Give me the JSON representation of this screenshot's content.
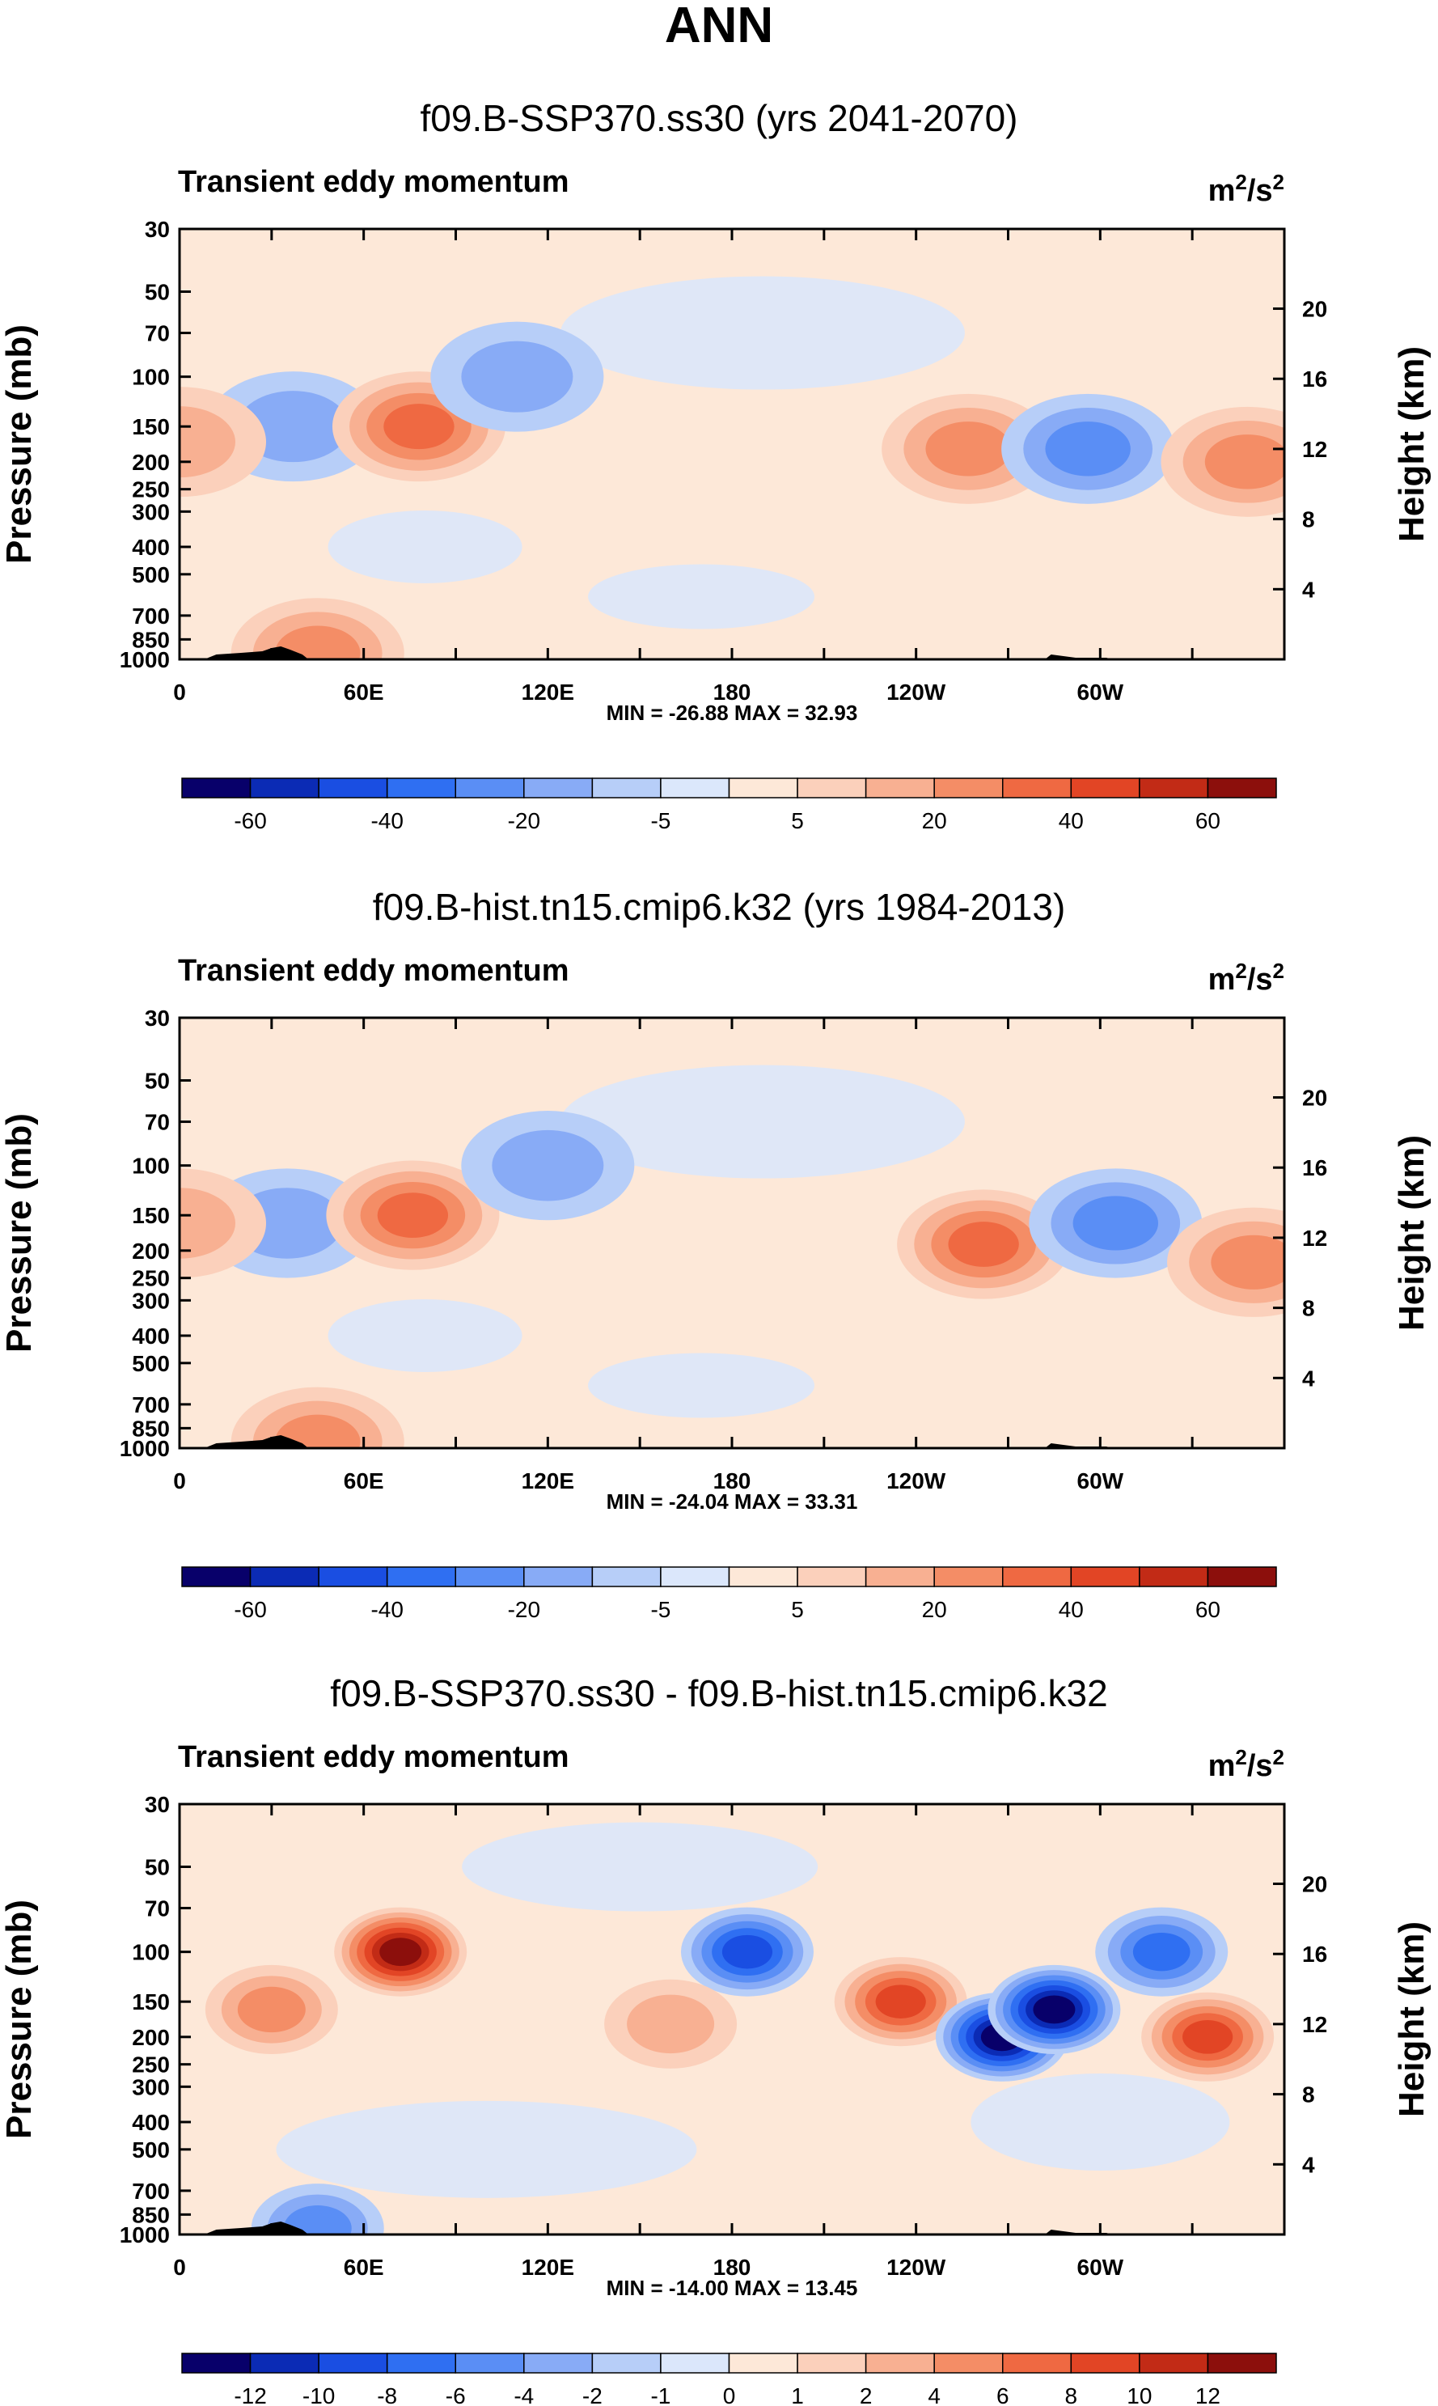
{
  "figure": {
    "season": "ANN",
    "left_axis_label": "Pressure (mb)",
    "right_axis_label": "Height (km)",
    "x_tick_labels": [
      "0",
      "60E",
      "120E",
      "180",
      "120W",
      "60W"
    ],
    "pressure_ticks": [
      "30",
      "50",
      "70",
      "100",
      "150",
      "200",
      "250",
      "300",
      "400",
      "500",
      "700",
      "850",
      "1000"
    ],
    "height_ticks": [
      "20",
      "16",
      "12",
      "8",
      "4"
    ]
  },
  "chart_data": [
    {
      "type": "heatmap",
      "title": "f09.B-SSP370.ss30 (yrs 2041-2070)",
      "variable": "Transient eddy momentum",
      "units": "m²/s²",
      "units_base": "m",
      "units_exp1": "2",
      "units_mid": "/s",
      "units_exp2": "2",
      "stats": "MIN = -26.88  MAX =  32.93",
      "min": -26.88,
      "max": 32.93,
      "xlim": [
        0,
        360
      ],
      "ylim_mb": [
        1000,
        30
      ],
      "colorbar_labels": [
        "-60",
        "-40",
        "-20",
        "-5",
        "5",
        "20",
        "40",
        "60"
      ],
      "features": [
        {
          "lon": 37,
          "p": 150,
          "value": -15
        },
        {
          "lon": 78,
          "p": 150,
          "value": 30
        },
        {
          "lon": 110,
          "p": 100,
          "value": -12
        },
        {
          "lon": 257,
          "p": 180,
          "value": 28
        },
        {
          "lon": 296,
          "p": 180,
          "value": -26
        },
        {
          "lon": 348,
          "p": 200,
          "value": 28
        },
        {
          "lon": 0,
          "p": 170,
          "value": 12
        },
        {
          "lon": 45,
          "p": 950,
          "value": 22
        }
      ]
    },
    {
      "type": "heatmap",
      "title": "f09.B-hist.tn15.cmip6.k32 (yrs 1984-2013)",
      "variable": "Transient eddy momentum",
      "units": "m²/s²",
      "units_base": "m",
      "units_exp1": "2",
      "units_mid": "/s",
      "units_exp2": "2",
      "stats": "MIN = -24.04  MAX = 33.31",
      "min": -24.04,
      "max": 33.31,
      "xlim": [
        0,
        360
      ],
      "ylim_mb": [
        1000,
        30
      ],
      "colorbar_labels": [
        "-60",
        "-40",
        "-20",
        "-5",
        "5",
        "20",
        "40",
        "60"
      ],
      "features": [
        {
          "lon": 35,
          "p": 160,
          "value": -18
        },
        {
          "lon": 76,
          "p": 150,
          "value": 30
        },
        {
          "lon": 120,
          "p": 100,
          "value": -10
        },
        {
          "lon": 262,
          "p": 190,
          "value": 32
        },
        {
          "lon": 305,
          "p": 160,
          "value": -24
        },
        {
          "lon": 350,
          "p": 220,
          "value": 22
        },
        {
          "lon": 0,
          "p": 160,
          "value": 12
        },
        {
          "lon": 45,
          "p": 950,
          "value": 22
        }
      ]
    },
    {
      "type": "heatmap",
      "title": "f09.B-SSP370.ss30 - f09.B-hist.tn15.cmip6.k32",
      "variable": "Transient eddy momentum",
      "units": "m²/s²",
      "units_base": "m",
      "units_exp1": "2",
      "units_mid": "/s",
      "units_exp2": "2",
      "stats": "MIN = -14.00  MAX = 13.45",
      "min": -14.0,
      "max": 13.45,
      "xlim": [
        0,
        360
      ],
      "ylim_mb": [
        1000,
        30
      ],
      "colorbar_labels": [
        "-12",
        "-10",
        "-8",
        "-6",
        "-4",
        "-2",
        "-1",
        "0",
        "1",
        "2",
        "4",
        "6",
        "8",
        "10",
        "12"
      ],
      "features": [
        {
          "lon": 72,
          "p": 100,
          "value": 13
        },
        {
          "lon": 30,
          "p": 160,
          "value": 4
        },
        {
          "lon": 185,
          "p": 100,
          "value": -8
        },
        {
          "lon": 235,
          "p": 150,
          "value": 8
        },
        {
          "lon": 268,
          "p": 200,
          "value": -14
        },
        {
          "lon": 285,
          "p": 160,
          "value": -12
        },
        {
          "lon": 335,
          "p": 200,
          "value": 8
        },
        {
          "lon": 320,
          "p": 100,
          "value": -6
        },
        {
          "lon": 160,
          "p": 180,
          "value": 3
        },
        {
          "lon": 45,
          "p": 950,
          "value": -4
        }
      ]
    }
  ]
}
